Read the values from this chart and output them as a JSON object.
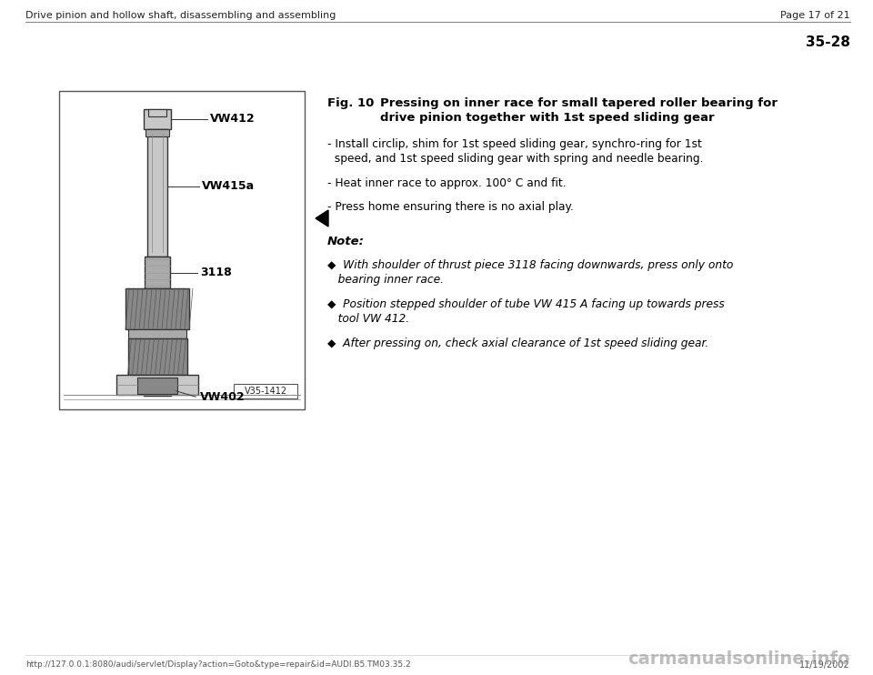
{
  "bg_color": "#ffffff",
  "page_width": 9.6,
  "page_height": 7.42,
  "header_left": "Drive pinion and hollow shaft, disassembling and assembling",
  "header_right": "Page 17 of 21",
  "section_number": "35-28",
  "fig_label": "Fig. 10",
  "fig_title_line1": "Pressing on inner race for small tapered roller bearing for",
  "fig_title_line2": "drive pinion together with 1st speed sliding gear",
  "b1a": "- Install circlip, shim for 1st speed sliding gear, synchro-ring for 1st",
  "b1b": "  speed, and 1st speed sliding gear with spring and needle bearing.",
  "b2": "- Heat inner race to approx. 100° C and fit.",
  "b3": "- Press home ensuring there is no axial play.",
  "note_label": "Note:",
  "n1a": "◆  With shoulder of thrust piece 3118 facing downwards, press only onto",
  "n1b": "   bearing inner race.",
  "n2a": "◆  Position stepped shoulder of tube VW 415 A facing up towards press",
  "n2b": "   tool VW 412.",
  "n3": "◆  After pressing on, check axial clearance of 1st speed sliding gear.",
  "footer_left": "http://127.0.0.1:8080/audi/servlet/Display?action=Goto&type=repair&id=AUDI.B5.TM03.35.2",
  "footer_right": "11/19/2002",
  "footer_watermark": "carmanualsonline.info",
  "label_vw412": "VW412",
  "label_vw415a": "VW415a",
  "label_3118": "3118",
  "label_vw402": "VW402",
  "img_caption": "V35-1412",
  "text_color": "#000000",
  "gray_dark": "#333333",
  "gray_med": "#777777",
  "gray_light": "#bbbbbb",
  "box_gray": "#c8c8c8"
}
